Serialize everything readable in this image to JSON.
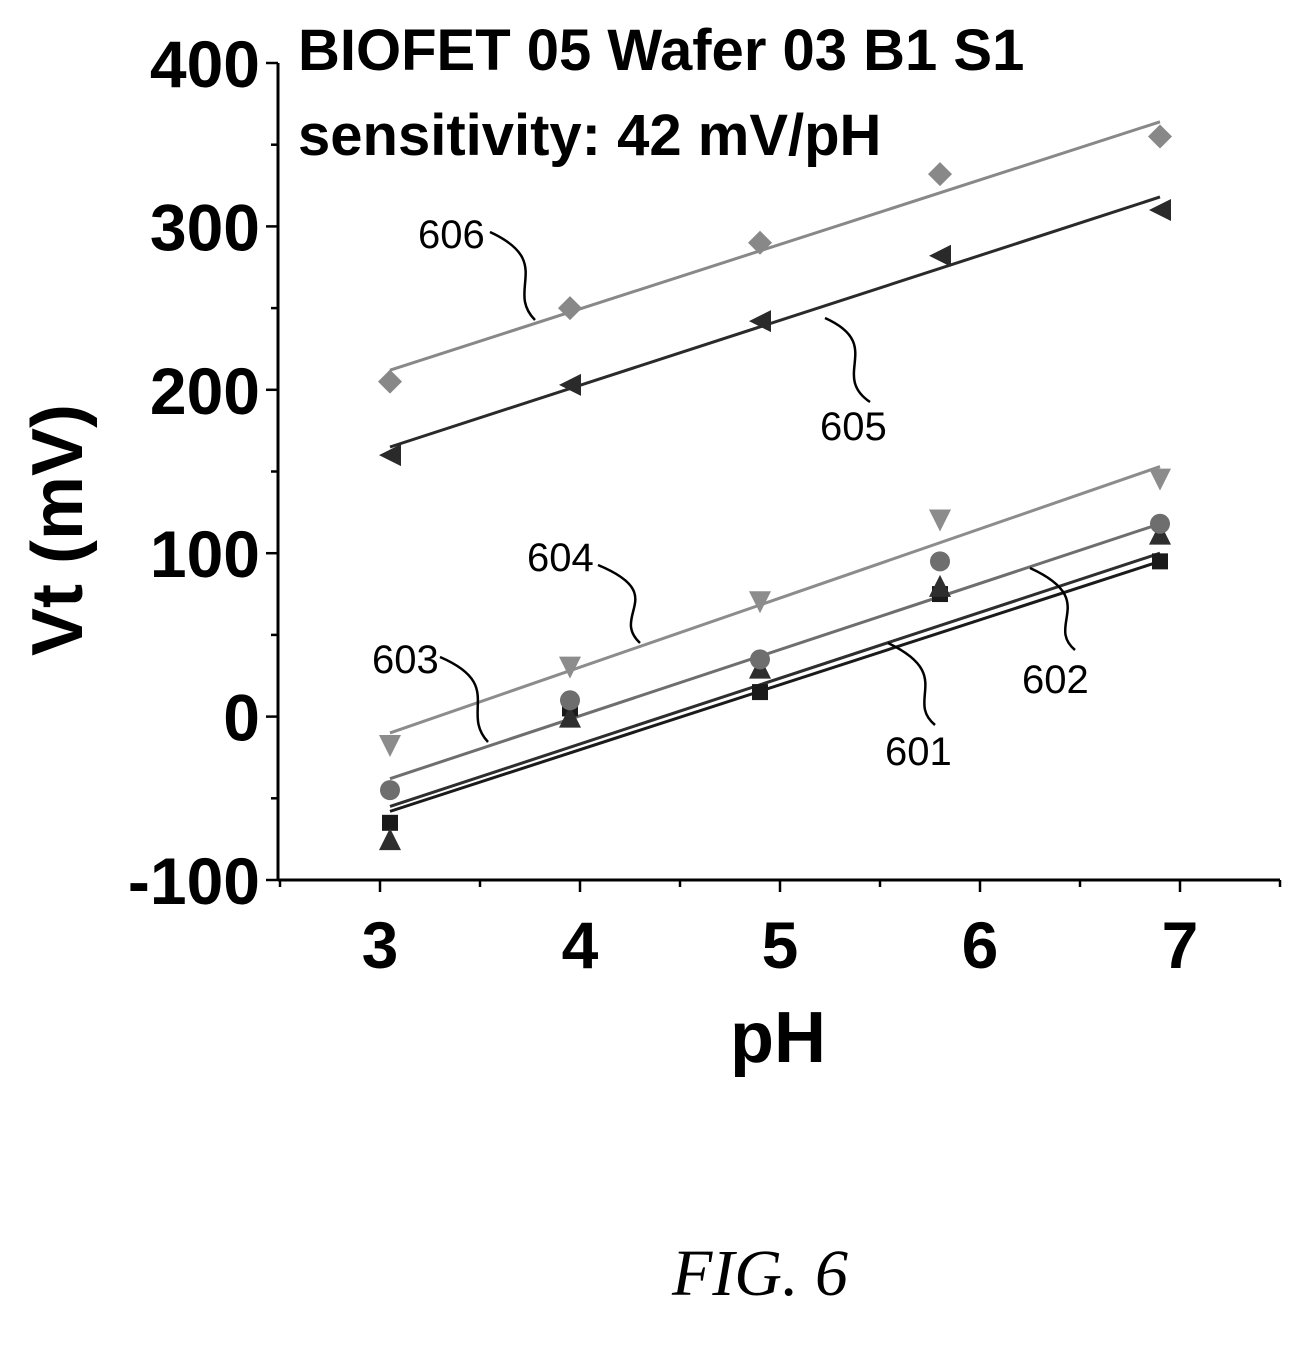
{
  "figure_caption": "FIG. 6",
  "chart_data": {
    "type": "scatter",
    "title": "BIOFET 05 Wafer 03 B1 S1",
    "subtitle": "sensitivity: 42 mV/pH",
    "xlabel": "pH",
    "ylabel": "Vt (mV)",
    "xlim": [
      2.5,
      7.5
    ],
    "ylim": [
      -100,
      400
    ],
    "x_ticks": [
      3,
      4,
      5,
      6,
      7
    ],
    "y_ticks": [
      -100,
      0,
      100,
      200,
      300,
      400
    ],
    "x_tick_labels": [
      "3",
      "4",
      "5",
      "6",
      "7"
    ],
    "y_tick_labels": [
      "-100",
      "0",
      "100",
      "200",
      "300",
      "400"
    ],
    "x": [
      3.05,
      3.95,
      4.9,
      5.8,
      6.9
    ],
    "grid": false,
    "legend": "none",
    "series": [
      {
        "callout": "601",
        "marker": "square",
        "color": "#1a1a1a",
        "values": [
          -65,
          5,
          15,
          75,
          95
        ],
        "fit": [
          -58,
          95
        ]
      },
      {
        "callout": "602",
        "marker": "triangle-up",
        "color": "#2e2e2e",
        "values": [
          -75,
          0,
          30,
          80,
          112
        ],
        "fit": [
          -55,
          100
        ]
      },
      {
        "callout": "603",
        "marker": "circle",
        "color": "#6e6e6e",
        "values": [
          -45,
          10,
          35,
          95,
          118
        ],
        "fit": [
          -38,
          118
        ]
      },
      {
        "callout": "604",
        "marker": "triangle-down",
        "color": "#8c8c8c",
        "values": [
          -18,
          30,
          70,
          120,
          145
        ],
        "fit": [
          -10,
          153
        ]
      },
      {
        "callout": "605",
        "marker": "triangle-left",
        "color": "#2a2a2a",
        "values": [
          160,
          203,
          242,
          282,
          310
        ],
        "fit": [
          165,
          318
        ]
      },
      {
        "callout": "606",
        "marker": "diamond",
        "color": "#888888",
        "values": [
          205,
          250,
          290,
          332,
          355
        ],
        "fit": [
          212,
          364
        ]
      }
    ],
    "annotations": [
      "601",
      "602",
      "603",
      "604",
      "605",
      "606"
    ]
  }
}
